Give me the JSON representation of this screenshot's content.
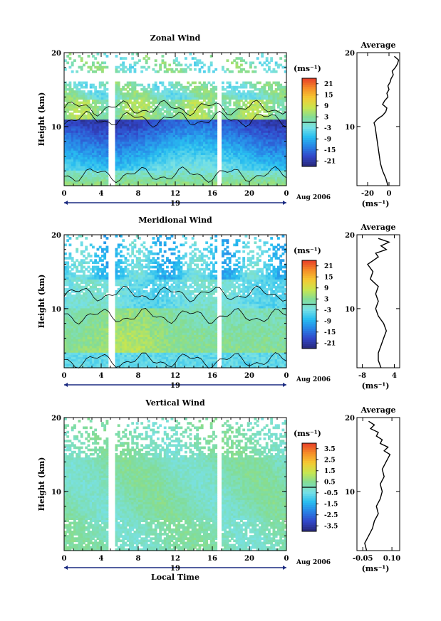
{
  "chart_data": [
    {
      "type": "heatmap",
      "title": "Zonal Wind",
      "ylabel": "Height (km)",
      "xlabel": "",
      "x_ticks": [
        "0",
        "4",
        "8",
        "12",
        "16",
        "20",
        "0"
      ],
      "y_ticks": [
        "10",
        "20"
      ],
      "xlim": [
        0,
        24
      ],
      "ylim": [
        2,
        20
      ],
      "day_label": "19",
      "date_label": "Aug 2006",
      "colorbar": {
        "unit": "(ms⁻¹)",
        "ticks": [
          "21",
          "15",
          "9",
          "3",
          "-3",
          "-9",
          "-15",
          "-21"
        ],
        "range": [
          -24,
          24
        ]
      },
      "gaps": [
        [
          4.8,
          5.0
        ],
        [
          5.2,
          5.5
        ],
        [
          16.6,
          16.9
        ]
      ],
      "profile": {
        "title": "Average",
        "xlabel": "(ms⁻¹)",
        "x_ticks": [
          "-20",
          "0"
        ],
        "y_ticks": [
          "10",
          "20"
        ],
        "xlim": [
          -30,
          10
        ],
        "heights": [
          2,
          3,
          4,
          5,
          6,
          7,
          8,
          9,
          10,
          10.5,
          11,
          11.5,
          12,
          12.5,
          13,
          13.5,
          14,
          14.5,
          15,
          15.5,
          16,
          16.5,
          17,
          17.5,
          18,
          18.5,
          19,
          19.5
        ],
        "values": [
          -1,
          -3,
          -6,
          -8,
          -9,
          -10,
          -11,
          -12,
          -13,
          -14,
          -11,
          -6,
          -3,
          -2,
          -6,
          -4,
          -1,
          -2,
          0,
          -1,
          1,
          2,
          4,
          3,
          6,
          8,
          9,
          5
        ]
      }
    },
    {
      "type": "heatmap",
      "title": "Meridional Wind",
      "ylabel": "Height (km)",
      "xlabel": "",
      "x_ticks": [
        "0",
        "4",
        "8",
        "12",
        "16",
        "20",
        "0"
      ],
      "y_ticks": [
        "10",
        "20"
      ],
      "xlim": [
        0,
        24
      ],
      "ylim": [
        2,
        20
      ],
      "day_label": "19",
      "date_label": "Aug 2006",
      "colorbar": {
        "unit": "(ms⁻¹)",
        "ticks": [
          "21",
          "15",
          "9",
          "3",
          "-3",
          "-9",
          "-15",
          "-21"
        ],
        "range": [
          -24,
          24
        ]
      },
      "gaps": [
        [
          4.8,
          5.0
        ],
        [
          5.2,
          5.5
        ],
        [
          16.6,
          16.9
        ]
      ],
      "profile": {
        "title": "Average",
        "xlabel": "(ms⁻¹)",
        "x_ticks": [
          "-8",
          "4"
        ],
        "y_ticks": [
          "10",
          "20"
        ],
        "xlim": [
          -10,
          6
        ],
        "heights": [
          2,
          3,
          4,
          5,
          6,
          7,
          8,
          9,
          10,
          11,
          12,
          13,
          14,
          15,
          16,
          16.5,
          17,
          17.5,
          18,
          18.5,
          19,
          19.5
        ],
        "values": [
          -1,
          -2,
          -2,
          -1,
          0,
          1,
          0,
          -2,
          -3,
          -2,
          -3,
          -2,
          -5,
          -4,
          -6,
          -4,
          -2,
          -3,
          1,
          -1,
          2,
          -2
        ]
      }
    },
    {
      "type": "heatmap",
      "title": "Vertical Wind",
      "ylabel": "Height (km)",
      "xlabel": "Local Time",
      "x_ticks": [
        "0",
        "4",
        "8",
        "12",
        "16",
        "20",
        "0"
      ],
      "y_ticks": [
        "10",
        "20"
      ],
      "xlim": [
        0,
        24
      ],
      "ylim": [
        2,
        20
      ],
      "day_label": "19",
      "date_label": "Aug 2006",
      "colorbar": {
        "unit": "(ms⁻¹)",
        "ticks": [
          "3.5",
          "2.5",
          "1.5",
          "0.5",
          "-0.5",
          "-1.5",
          "-2.5",
          "-3.5"
        ],
        "range": [
          -4,
          4
        ]
      },
      "gaps": [
        [
          4.8,
          5.0
        ],
        [
          5.2,
          5.5
        ],
        [
          16.6,
          16.9
        ]
      ],
      "profile": {
        "title": "Average",
        "xlabel": "(ms⁻¹)",
        "x_ticks": [
          "-0.05",
          "0.10"
        ],
        "y_ticks": [
          "10",
          "20"
        ],
        "xlim": [
          -0.08,
          0.14
        ],
        "heights": [
          2,
          3,
          4,
          5,
          6,
          7,
          8,
          9,
          10,
          11,
          12,
          13,
          14,
          15,
          15.5,
          16,
          16.5,
          17,
          17.5,
          18,
          18.5,
          19,
          19.5
        ],
        "values": [
          -0.03,
          -0.04,
          -0.02,
          0.0,
          0.01,
          0.03,
          0.02,
          0.04,
          0.05,
          0.04,
          0.06,
          0.05,
          0.07,
          0.09,
          0.06,
          0.08,
          0.04,
          0.05,
          0.02,
          0.03,
          -0.01,
          0.01,
          -0.02
        ]
      }
    }
  ]
}
